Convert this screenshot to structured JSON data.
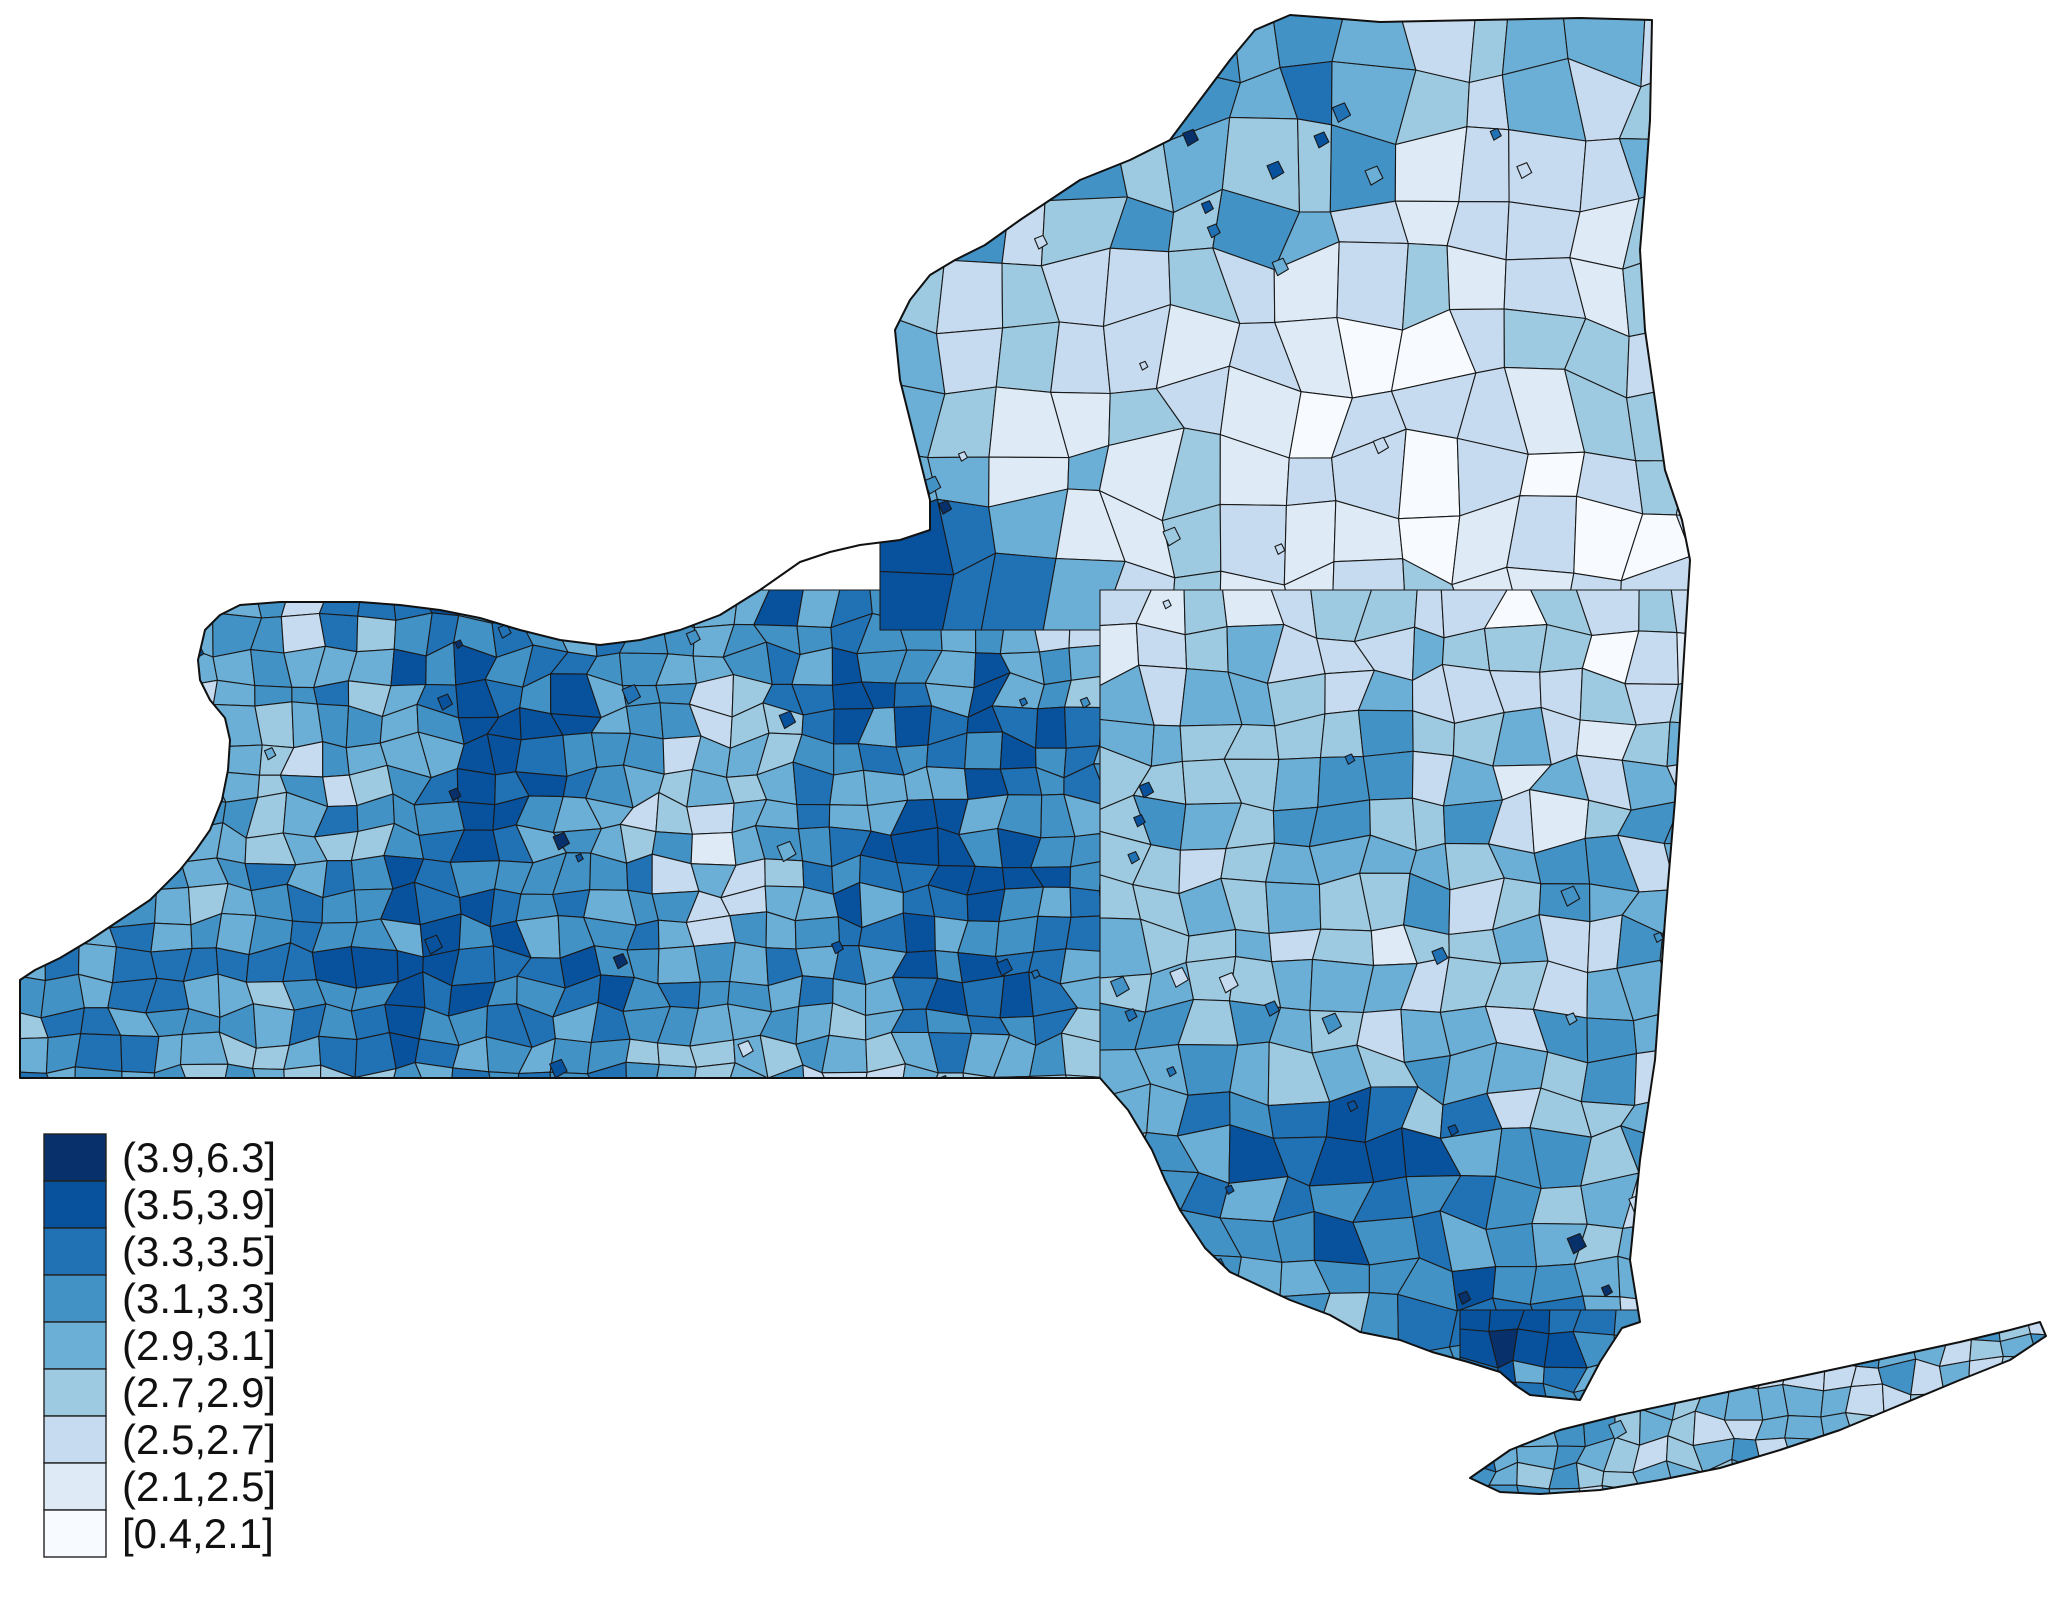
{
  "legend": {
    "entries": [
      {
        "label": "(3.9,6.3]",
        "color": "#08306b"
      },
      {
        "label": "(3.5,3.9]",
        "color": "#08519c"
      },
      {
        "label": "(3.3,3.5]",
        "color": "#2171b5"
      },
      {
        "label": "(3.1,3.3]",
        "color": "#4292c6"
      },
      {
        "label": "(2.9,3.1]",
        "color": "#6baed6"
      },
      {
        "label": "(2.7,2.9]",
        "color": "#9ecae1"
      },
      {
        "label": "(2.5,2.7]",
        "color": "#c6dbef"
      },
      {
        "label": "(2.1,2.5]",
        "color": "#deebf7"
      },
      {
        "label": "[0.4,2.1]",
        "color": "#f7fbff"
      }
    ]
  }
}
